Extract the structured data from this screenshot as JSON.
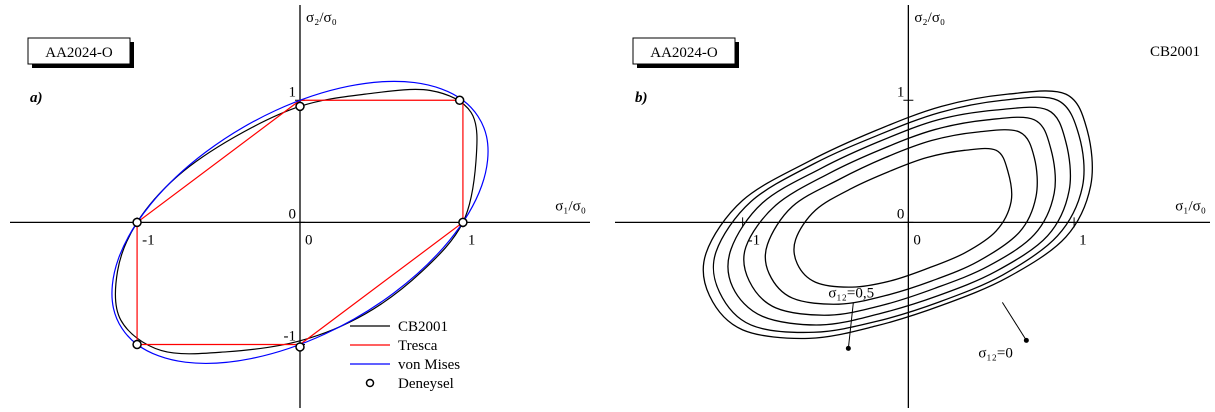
{
  "chart_data": [
    {
      "type": "line",
      "panel": "a)",
      "box_label": "AA2024-O",
      "xlabel": "σ₁/σ₀",
      "ylabel": "σ₂/σ₀",
      "xlim": [
        -1.78,
        1.78
      ],
      "ylim": [
        -1.52,
        1.78
      ],
      "xticks": [
        -1,
        0,
        1
      ],
      "yticks": [
        -1,
        0,
        1
      ],
      "legend": "lower right",
      "series": [
        {
          "name": "CB2001",
          "color": "#000000",
          "x": [
            1,
            1.08,
            1.05,
            0.8,
            0.4,
            0,
            -0.4,
            -0.75,
            -1,
            -1.12,
            -1.1,
            -0.85,
            -0.45,
            0,
            0.4,
            0.75
          ],
          "values": [
            0,
            0.5,
            0.9,
            1.08,
            1.05,
            0.95,
            0.7,
            0.38,
            0,
            -0.4,
            -0.8,
            -1.05,
            -1.06,
            -0.97,
            -0.75,
            -0.4
          ]
        },
        {
          "name": "Tresca",
          "color": "#ff0000",
          "x": [
            1,
            1,
            0,
            -1,
            -1,
            0
          ],
          "values": [
            0,
            1,
            1,
            0,
            -1,
            -1
          ]
        },
        {
          "name": "von Mises",
          "color": "#0000ff",
          "x": [
            1,
            0.703,
            0.299,
            -0.15,
            -0.577,
            -0.916,
            -1.115,
            -1.145,
            -1,
            -0.703,
            -0.299,
            0.15,
            0.577,
            0.916,
            1.115,
            1.145
          ],
          "values": [
            1,
            1.145,
            1.115,
            0.916,
            0.577,
            0.15,
            -0.299,
            -0.703,
            -1,
            -1.145,
            -1.115,
            -0.916,
            -0.577,
            -0.15,
            0.299,
            0.703
          ]
        },
        {
          "name": "Deneysel",
          "color": "#000000",
          "marker": "o",
          "x": [
            1,
            0.98,
            0,
            -1,
            -1,
            0
          ],
          "values": [
            0,
            1,
            0.95,
            0,
            -1,
            -1.02
          ]
        }
      ]
    },
    {
      "type": "line",
      "panel": "b)",
      "box_label": "AA2024-O",
      "title": "CB2001",
      "xlabel": "σ₁/σ₀",
      "ylabel": "σ₂/σ₀",
      "xlim": [
        -1.77,
        1.82
      ],
      "ylim": [
        -1.52,
        1.78
      ],
      "xticks": [
        -1,
        0,
        1
      ],
      "yticks": [
        0,
        1
      ],
      "annotations": [
        "σ₁₂=0,5",
        "σ₁₂=0"
      ],
      "series": [
        {
          "color": "#000000",
          "x": [
            1.1,
            1.08,
            0.95,
            0.6,
            0.2,
            -0.2,
            -0.6,
            -1.0,
            -1.22,
            -1.2,
            -1.0,
            -0.6,
            -0.2,
            0.2,
            0.6,
            0.95
          ],
          "values": [
            0.3,
            0.75,
            1.05,
            1.05,
            0.95,
            0.75,
            0.5,
            0.18,
            -0.25,
            -0.6,
            -0.88,
            -0.95,
            -0.85,
            -0.68,
            -0.45,
            -0.12
          ]
        },
        {
          "color": "#000000",
          "x": [
            1.05,
            1.03,
            0.9,
            0.57,
            0.19,
            -0.19,
            -0.57,
            -0.95,
            -1.16,
            -1.14,
            -0.95,
            -0.57,
            -0.19,
            0.19,
            0.57,
            0.9
          ],
          "values": [
            0.29,
            0.71,
            1.0,
            1.0,
            0.9,
            0.71,
            0.48,
            0.17,
            -0.24,
            -0.57,
            -0.84,
            -0.9,
            -0.81,
            -0.65,
            -0.43,
            -0.11
          ]
        },
        {
          "color": "#000000",
          "x": [
            0.97,
            0.95,
            0.84,
            0.53,
            0.18,
            -0.18,
            -0.53,
            -0.88,
            -1.07,
            -1.06,
            -0.88,
            -0.53,
            -0.18,
            0.18,
            0.53,
            0.84
          ],
          "values": [
            0.26,
            0.66,
            0.92,
            0.92,
            0.84,
            0.66,
            0.44,
            0.16,
            -0.22,
            -0.53,
            -0.77,
            -0.84,
            -0.75,
            -0.6,
            -0.4,
            -0.11
          ]
        },
        {
          "color": "#000000",
          "x": [
            0.88,
            0.86,
            0.76,
            0.48,
            0.16,
            -0.16,
            -0.48,
            -0.8,
            -0.98,
            -0.96,
            -0.8,
            -0.48,
            -0.16,
            0.16,
            0.48,
            0.76
          ],
          "values": [
            0.24,
            0.6,
            0.84,
            0.84,
            0.76,
            0.6,
            0.4,
            0.14,
            -0.2,
            -0.48,
            -0.7,
            -0.76,
            -0.68,
            -0.54,
            -0.36,
            -0.1
          ]
        },
        {
          "color": "#000000",
          "x": [
            0.77,
            0.76,
            0.67,
            0.42,
            0.14,
            -0.14,
            -0.42,
            -0.7,
            -0.85,
            -0.84,
            -0.7,
            -0.42,
            -0.14,
            0.14,
            0.42,
            0.67
          ],
          "values": [
            0.21,
            0.53,
            0.74,
            0.74,
            0.67,
            0.53,
            0.35,
            0.13,
            -0.18,
            -0.42,
            -0.62,
            -0.67,
            -0.6,
            -0.48,
            -0.32,
            -0.08
          ]
        },
        {
          "color": "#000000",
          "x": [
            0.62,
            0.6,
            0.53,
            0.34,
            0.11,
            -0.11,
            -0.34,
            -0.56,
            -0.68,
            -0.67,
            -0.56,
            -0.34,
            -0.11,
            0.11,
            0.34,
            0.53
          ],
          "values": [
            0.17,
            0.42,
            0.59,
            0.59,
            0.53,
            0.42,
            0.28,
            0.1,
            -0.14,
            -0.34,
            -0.49,
            -0.53,
            -0.48,
            -0.38,
            -0.25,
            -0.07
          ]
        }
      ]
    }
  ]
}
